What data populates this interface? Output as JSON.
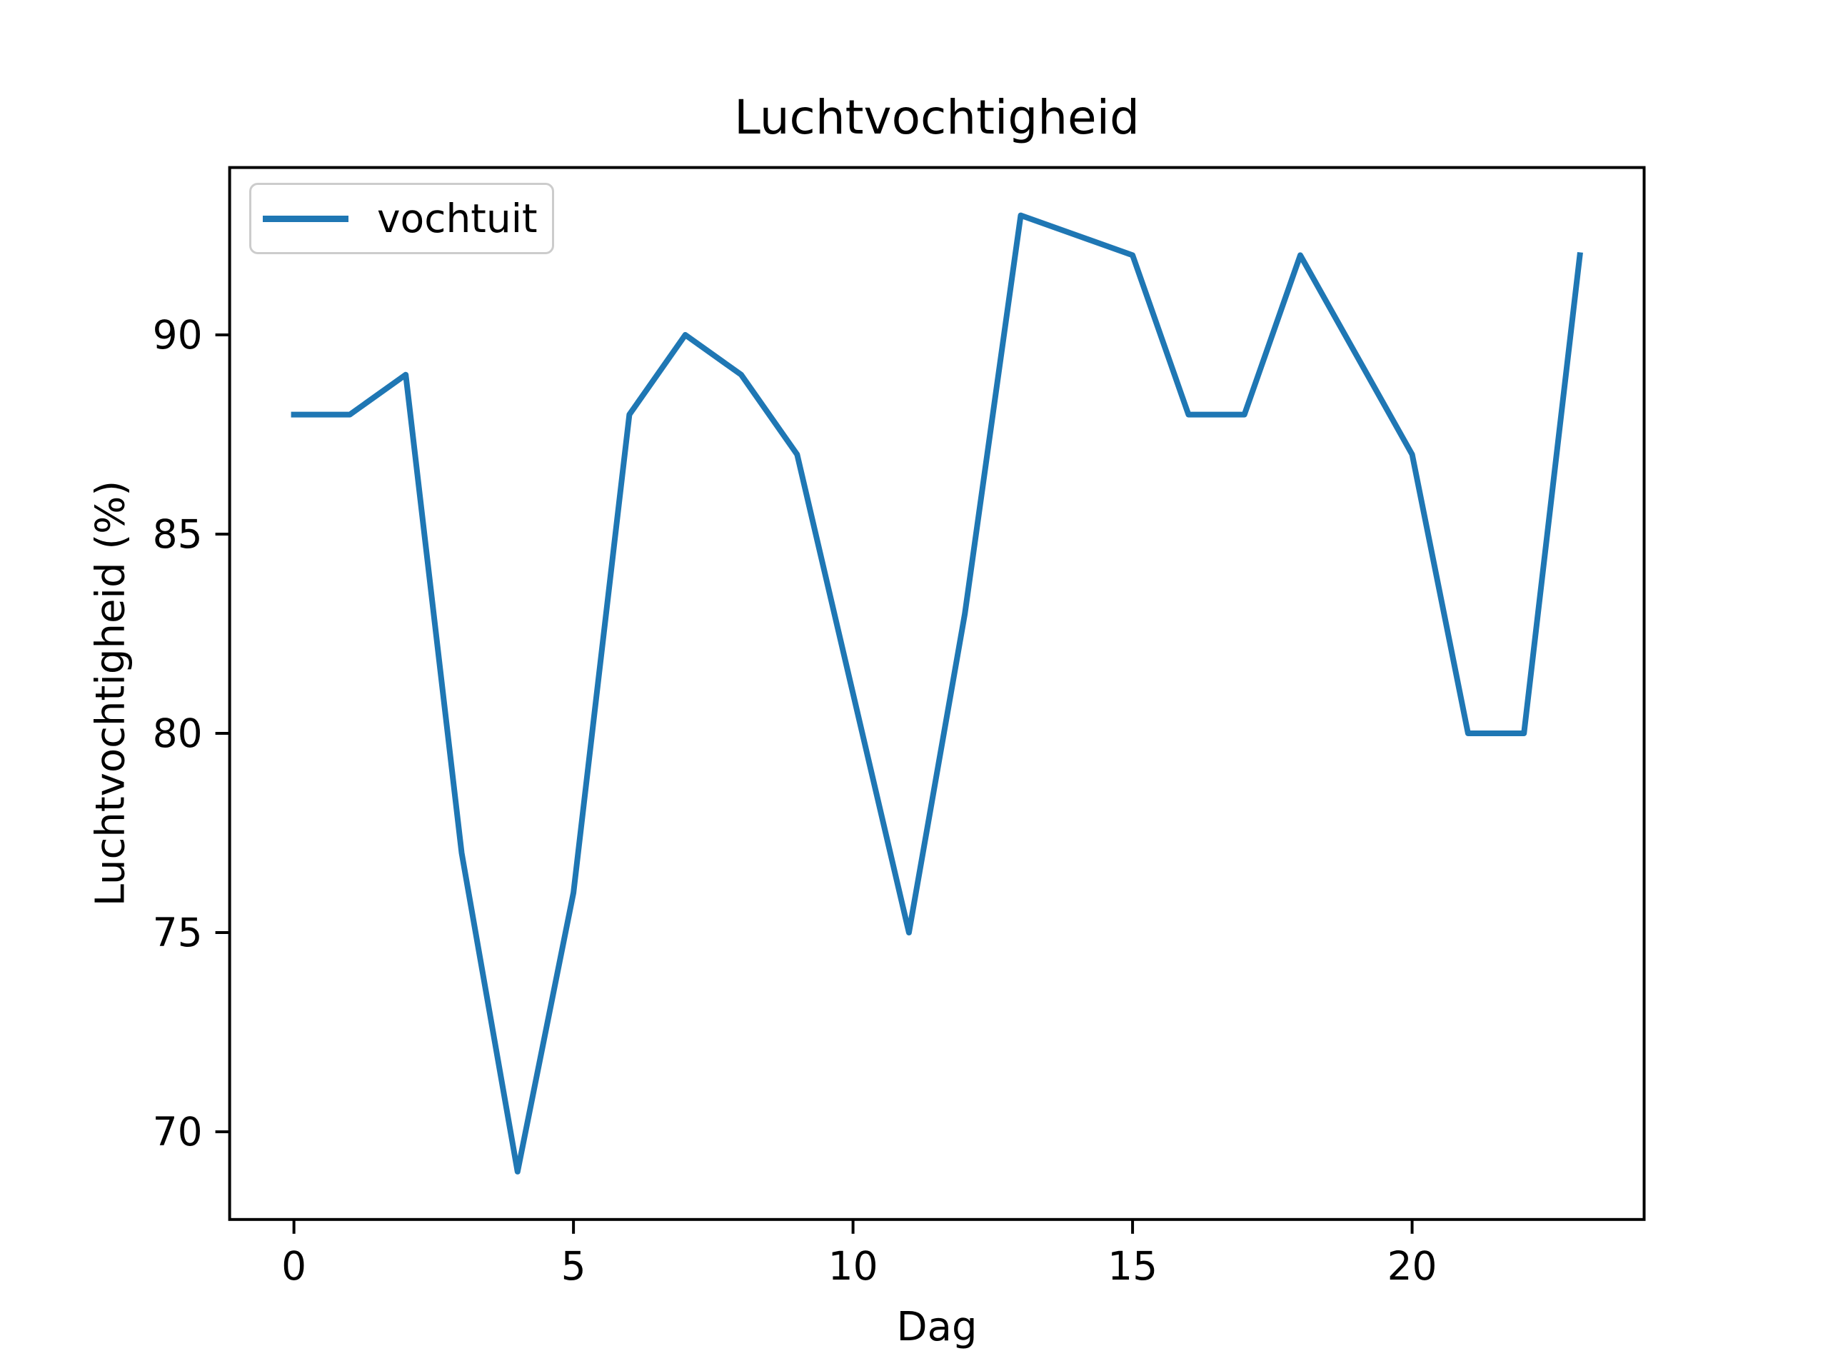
{
  "figure": {
    "background": "#ffffff",
    "text_color": "#000000",
    "spine_color": "#000000",
    "legend_border_color": "#cccccc"
  },
  "chart_data": {
    "type": "line",
    "title": "Luchtvochtigheid",
    "xlabel": "Dag",
    "ylabel": "Luchtvochtigheid (%)",
    "grid": false,
    "legend_position": "upper left",
    "line_color": "#1f77b4",
    "x": [
      0,
      1,
      2,
      3,
      4,
      5,
      6,
      7,
      8,
      9,
      10,
      11,
      12,
      13,
      14,
      15,
      16,
      17,
      18,
      19,
      20,
      21,
      22,
      23
    ],
    "series": [
      {
        "name": "vochtuit",
        "values": [
          88,
          88,
          89,
          77,
          69,
          76,
          88,
          90,
          89,
          87,
          81,
          75,
          83,
          93,
          92.5,
          92,
          88,
          88,
          92,
          89.5,
          87,
          80,
          80,
          92
        ]
      }
    ],
    "xlim": [
      -1.15,
      24.15
    ],
    "ylim": [
      67.8,
      94.2
    ],
    "xticks": [
      0,
      5,
      10,
      15,
      20
    ],
    "yticks": [
      70,
      75,
      80,
      85,
      90
    ]
  }
}
